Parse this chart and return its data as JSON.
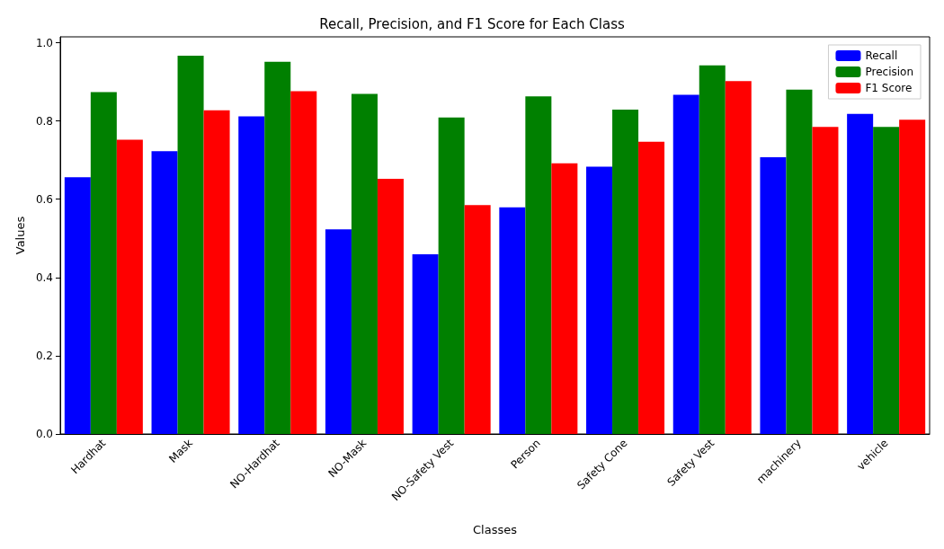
{
  "chart_data": {
    "type": "bar",
    "title": "Recall, Precision, and F1 Score for Each Class",
    "xlabel": "Classes",
    "ylabel": "Values",
    "categories": [
      "Hardhat",
      "Mask",
      "NO-Hardhat",
      "NO-Mask",
      "NO-Safety Vest",
      "Person",
      "Safety Cone",
      "Safety Vest",
      "machinery",
      "vehicle"
    ],
    "series": [
      {
        "name": "Recall",
        "color": "#0000ff",
        "values": [
          0.656,
          0.723,
          0.812,
          0.523,
          0.459,
          0.579,
          0.683,
          0.867,
          0.707,
          0.818
        ]
      },
      {
        "name": "Precision",
        "color": "#008000",
        "values": [
          0.874,
          0.967,
          0.951,
          0.869,
          0.809,
          0.863,
          0.829,
          0.942,
          0.88,
          0.785
        ]
      },
      {
        "name": "F1 Score",
        "color": "#ff0000",
        "values": [
          0.752,
          0.827,
          0.876,
          0.652,
          0.585,
          0.692,
          0.747,
          0.902,
          0.785,
          0.803
        ]
      }
    ],
    "ylim": [
      0,
      1.015
    ],
    "yticks": [
      {
        "value": 0,
        "label": "0.0"
      },
      {
        "value": 0.2,
        "label": "0.2"
      },
      {
        "value": 0.4,
        "label": "0.4"
      },
      {
        "value": 0.6,
        "label": "0.6"
      },
      {
        "value": 0.8,
        "label": "0.8"
      },
      {
        "value": 1,
        "label": "1.0"
      }
    ],
    "grid": false,
    "legend": "top right"
  }
}
